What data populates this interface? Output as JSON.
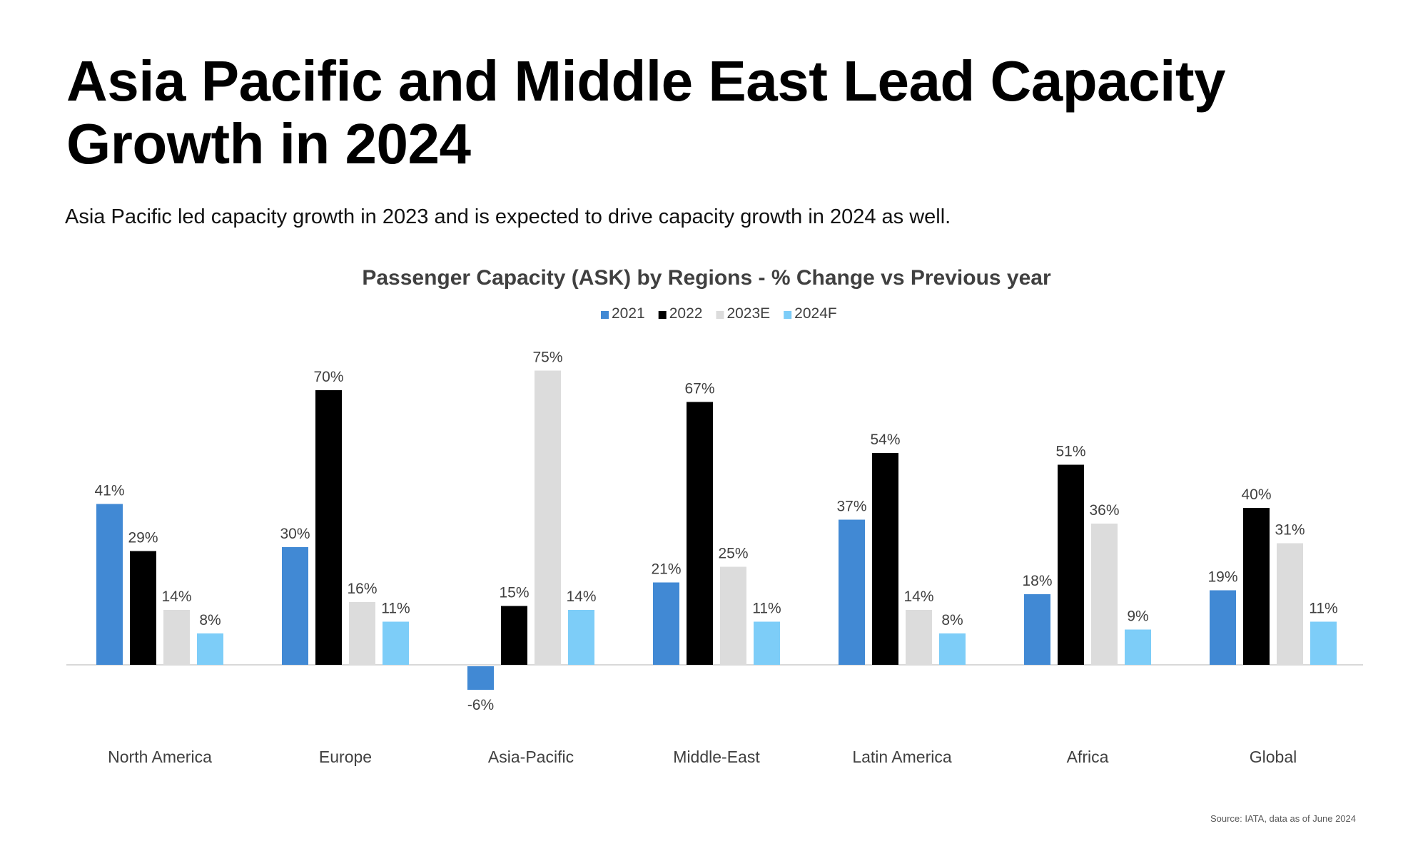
{
  "headline": "Asia Pacific and Middle East Lead Capacity Growth in 2024",
  "subtitle": "Asia Pacific led capacity growth in 2023 and is expected to drive capacity growth in 2024 as well.",
  "source": "Source: IATA, data as of June 2024",
  "chart_data": {
    "type": "bar",
    "title": "Passenger Capacity (ASK) by Regions - % Change vs Previous year",
    "xlabel": "",
    "ylabel": "",
    "ylim": [
      -10,
      80
    ],
    "grid": false,
    "legend_position": "top-center",
    "categories": [
      "North America",
      "Europe",
      "Asia-Pacific",
      "Middle-East",
      "Latin America",
      "Africa",
      "Global"
    ],
    "series": [
      {
        "name": "2021",
        "color": "#4189d4",
        "values": [
          41,
          30,
          -6,
          21,
          37,
          18,
          19
        ],
        "labels": [
          "41%",
          "30%",
          "-6%",
          "21%",
          "37%",
          "18%",
          "19%"
        ]
      },
      {
        "name": "2022",
        "color": "#000000",
        "values": [
          29,
          70,
          15,
          67,
          54,
          51,
          40
        ],
        "labels": [
          "29%",
          "70%",
          "15%",
          "67%",
          "54%",
          "51%",
          "40%"
        ]
      },
      {
        "name": "2023E",
        "color": "#dcdcdc",
        "values": [
          14,
          16,
          75,
          25,
          14,
          36,
          31
        ],
        "labels": [
          "14%",
          "16%",
          "75%",
          "25%",
          "14%",
          "36%",
          "31%"
        ]
      },
      {
        "name": "2024F",
        "color": "#7dcdf8",
        "values": [
          8,
          11,
          14,
          11,
          8,
          9,
          11
        ],
        "labels": [
          "8%",
          "11%",
          "14%",
          "11%",
          "8%",
          "9%",
          "11%"
        ]
      }
    ]
  }
}
